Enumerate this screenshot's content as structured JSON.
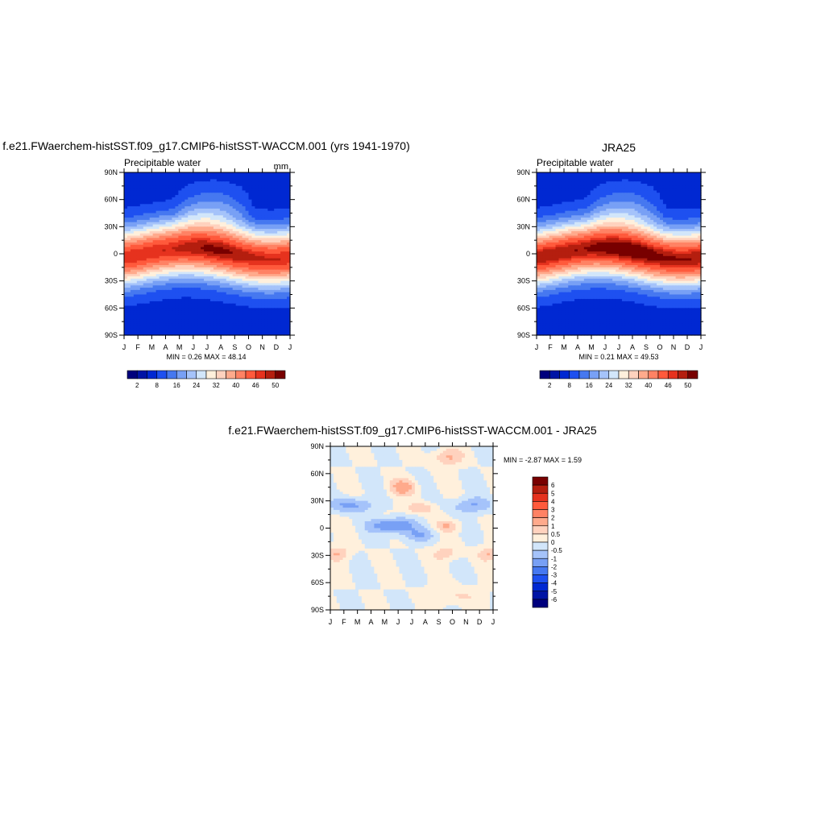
{
  "palettes": {
    "sequential": [
      "#00007d",
      "#0014a5",
      "#0028d2",
      "#1e50f0",
      "#4678f0",
      "#78a0f5",
      "#a5c3fa",
      "#d2e6fa",
      "#fff0dc",
      "#ffd2be",
      "#ffaa8c",
      "#ff8264",
      "#ff5a3c",
      "#e6321e",
      "#b41e0f",
      "#780000"
    ],
    "diverging": [
      "#00007d",
      "#0014a5",
      "#0028d2",
      "#1e50f0",
      "#4678f0",
      "#78a0f5",
      "#a5c3fa",
      "#d2e6fa",
      "#fff0dc",
      "#ffd2be",
      "#ffaa8c",
      "#ff8264",
      "#ff5a3c",
      "#e6321e",
      "#b41e0f",
      "#780000"
    ]
  },
  "chart_data": [
    {
      "type": "heatmap",
      "title": "f.e21.FWaerchem-histSST.f09_g17.CMIP6-histSST-WACCM.001 (yrs 1941-1970)",
      "subtitle_left": "Precipitable water",
      "subtitle_right": "mm",
      "x_tick_labels": [
        "J",
        "F",
        "M",
        "A",
        "M",
        "J",
        "J",
        "A",
        "S",
        "O",
        "N",
        "D",
        "J"
      ],
      "y_tick_labels": [
        "90N",
        "60N",
        "30N",
        "0",
        "30S",
        "60S",
        "90S"
      ],
      "ylim": [
        -90,
        90
      ],
      "min_max_text": "MIN =   0.26 MAX =  48.14",
      "min": 0.26,
      "max": 48.14,
      "colorbar_labels": [
        "2",
        "8",
        "16",
        "24",
        "32",
        "40",
        "46",
        "50"
      ],
      "colorbar_levels": [
        1,
        2,
        4,
        8,
        12,
        16,
        20,
        24,
        28,
        32,
        36,
        40,
        44,
        46,
        48
      ],
      "field": "model"
    },
    {
      "type": "heatmap",
      "title": "JRA25",
      "subtitle_left": "Precipitable water",
      "subtitle_right": "",
      "x_tick_labels": [
        "J",
        "F",
        "M",
        "A",
        "M",
        "J",
        "J",
        "A",
        "S",
        "O",
        "N",
        "D",
        "J"
      ],
      "y_tick_labels": [
        "90N",
        "60N",
        "30N",
        "0",
        "30S",
        "60S",
        "90S"
      ],
      "ylim": [
        -90,
        90
      ],
      "min_max_text": "MIN =   0.21 MAX =  49.53",
      "min": 0.21,
      "max": 49.53,
      "colorbar_labels": [
        "2",
        "8",
        "16",
        "24",
        "32",
        "40",
        "46",
        "50"
      ],
      "colorbar_levels": [
        1,
        2,
        4,
        8,
        12,
        16,
        20,
        24,
        28,
        32,
        36,
        40,
        44,
        46,
        48
      ],
      "field": "obs"
    },
    {
      "type": "heatmap",
      "title": "f.e21.FWaerchem-histSST.f09_g17.CMIP6-histSST-WACCM.001 - JRA25",
      "x_tick_labels": [
        "J",
        "F",
        "M",
        "A",
        "M",
        "J",
        "J",
        "A",
        "S",
        "O",
        "N",
        "D",
        "J"
      ],
      "y_tick_labels": [
        "90N",
        "60N",
        "30N",
        "0",
        "30S",
        "60S",
        "90S"
      ],
      "ylim": [
        -90,
        90
      ],
      "min_max_text": "MIN =  -2.87 MAX =   1.59",
      "min": -2.87,
      "max": 1.59,
      "colorbar_labels": [
        "6",
        "5",
        "4",
        "3",
        "2",
        "1",
        "0.5",
        "0",
        "-0.5",
        "-1",
        "-2",
        "-3",
        "-4",
        "-5",
        "-6"
      ],
      "colorbar_levels": [
        -6,
        -5,
        -4,
        -3,
        -2,
        -1,
        -0.5,
        0,
        0.5,
        1,
        2,
        3,
        4,
        5,
        6
      ],
      "field": "diff"
    }
  ]
}
